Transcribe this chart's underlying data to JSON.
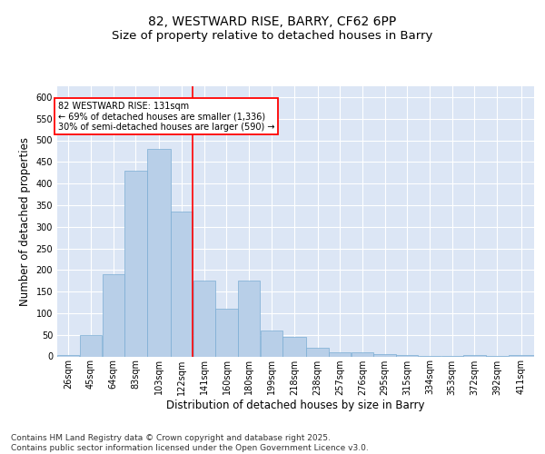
{
  "title1": "82, WESTWARD RISE, BARRY, CF62 6PP",
  "title2": "Size of property relative to detached houses in Barry",
  "xlabel": "Distribution of detached houses by size in Barry",
  "ylabel": "Number of detached properties",
  "bar_color": "#b8cfe8",
  "bar_edge_color": "#7aadd4",
  "vline_x": 131,
  "vline_color": "red",
  "annotation_line1": "82 WESTWARD RISE: 131sqm",
  "annotation_line2": "← 69% of detached houses are smaller (1,336)",
  "annotation_line3": "30% of semi-detached houses are larger (590) →",
  "background_color": "#dce6f5",
  "grid_color": "#ffffff",
  "categories": [
    "26sqm",
    "45sqm",
    "64sqm",
    "83sqm",
    "103sqm",
    "122sqm",
    "141sqm",
    "160sqm",
    "180sqm",
    "199sqm",
    "218sqm",
    "238sqm",
    "257sqm",
    "276sqm",
    "295sqm",
    "315sqm",
    "334sqm",
    "353sqm",
    "372sqm",
    "392sqm",
    "411sqm"
  ],
  "bin_edges": [
    16.5,
    35.5,
    54.5,
    73.5,
    92.5,
    112.5,
    131.5,
    150.5,
    169.5,
    188.5,
    207.5,
    227.5,
    246.5,
    265.5,
    284.5,
    303.5,
    322.5,
    341.5,
    360.5,
    379.5,
    398.5,
    420.5
  ],
  "values": [
    3,
    50,
    190,
    430,
    480,
    335,
    175,
    110,
    175,
    60,
    45,
    20,
    10,
    10,
    5,
    3,
    2,
    1,
    3,
    1,
    3
  ],
  "ylim": [
    0,
    625
  ],
  "yticks": [
    0,
    50,
    100,
    150,
    200,
    250,
    300,
    350,
    400,
    450,
    500,
    550,
    600
  ],
  "footer": "Contains HM Land Registry data © Crown copyright and database right 2025.\nContains public sector information licensed under the Open Government Licence v3.0.",
  "title_fontsize": 10,
  "subtitle_fontsize": 9.5,
  "tick_fontsize": 7,
  "label_fontsize": 8.5,
  "footer_fontsize": 6.5
}
